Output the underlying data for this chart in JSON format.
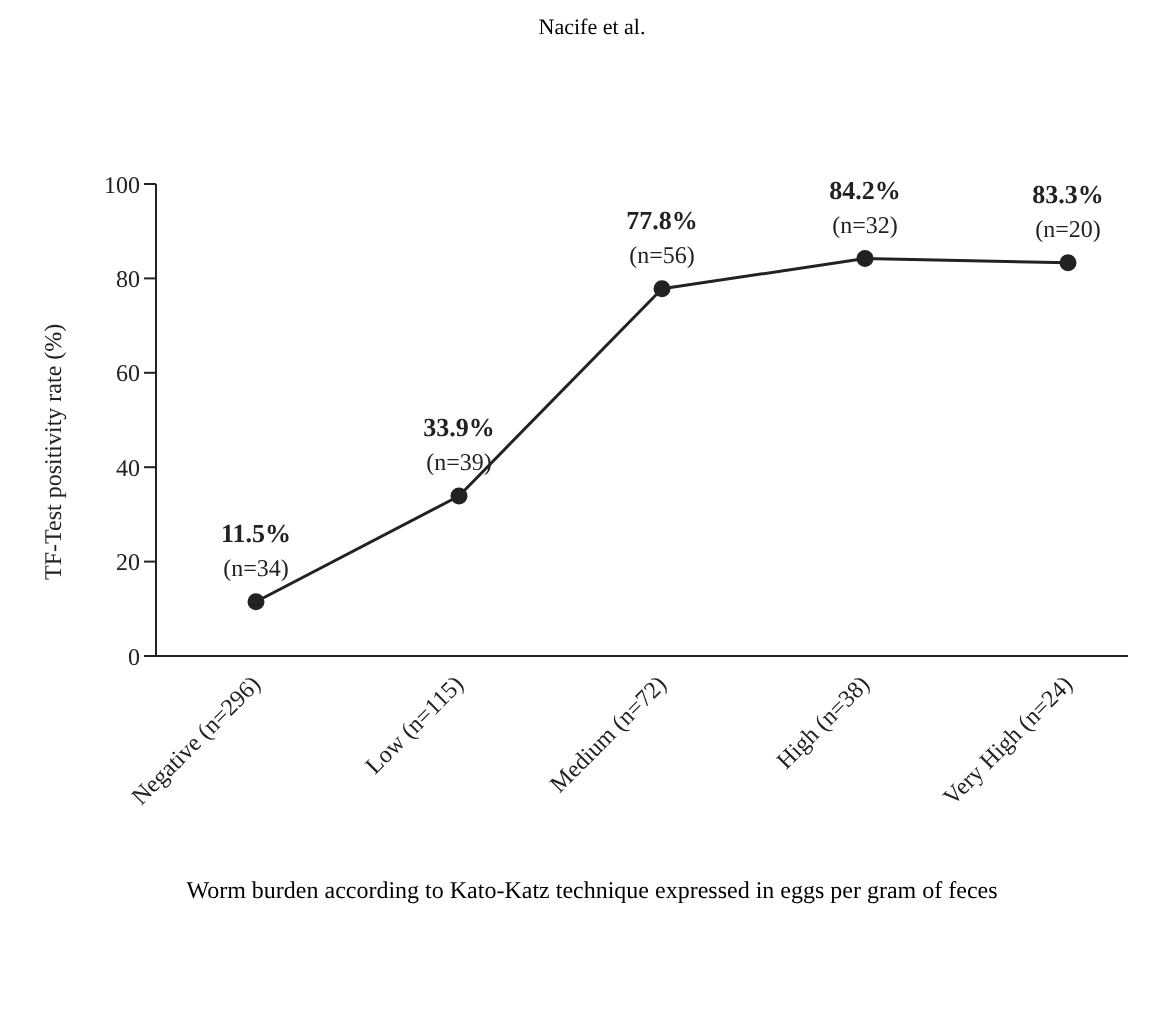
{
  "chart_data": {
    "type": "line",
    "title": "Nacife et al.",
    "xlabel": "Worm burden according to Kato-Katz technique expressed in eggs per gram of feces",
    "ylabel": "TF-Test positivity rate (%)",
    "categories": [
      "Negative (n=296)",
      "Low (n=115)",
      "Medium (n=72)",
      "High (n=38)",
      "Very High (n=24)"
    ],
    "series": [
      {
        "color": "#222222",
        "values": [
          11.5,
          33.9,
          77.8,
          84.2,
          83.3
        ],
        "value_labels": [
          "11.5%",
          "33.9%",
          "77.8%",
          "84.2%",
          "83.3%"
        ]
      }
    ],
    "annotations": [
      {
        "text": "(n=34)",
        "x": "Negative (n=296)",
        "y": 11.5
      },
      {
        "text": "(n=39)",
        "x": "Low (n=115)",
        "y": 33.9
      },
      {
        "text": "(n=56)",
        "x": "Medium (n=72)",
        "y": 77.8
      },
      {
        "text": "(n=32)",
        "x": "High (n=38)",
        "y": 84.2
      },
      {
        "text": "(n=20)",
        "x": "Very High (n=24)",
        "y": 83.3
      }
    ],
    "ylim": [
      0,
      100
    ],
    "yticks": [
      0,
      20,
      40,
      60,
      80,
      100
    ],
    "marker": "circle",
    "line_style": "solid",
    "grid": false,
    "legend": false
  }
}
